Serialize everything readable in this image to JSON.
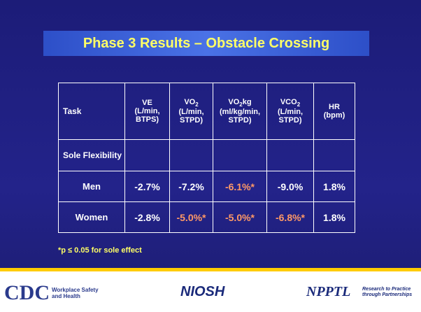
{
  "slide": {
    "title": "Phase 3 Results – Obstacle Crossing",
    "table": {
      "headers": [
        {
          "main": "Task"
        },
        {
          "main": "VE",
          "unit": "(L/min, BTPS)"
        },
        {
          "main": "VO",
          "sub": "2",
          "unit": "(L/min, STPD)"
        },
        {
          "main": "VO",
          "sub": "2",
          "after": "kg",
          "unit": "(ml/kg/min, STPD)"
        },
        {
          "main": "VCO",
          "sub": "2",
          "unit": "(L/min, STPD)"
        },
        {
          "main": "HR",
          "unit": "(bpm)"
        }
      ],
      "section": "Sole Flexibility",
      "rows": [
        {
          "label": "Men",
          "cells": [
            {
              "text": "-2.7%",
              "color": "#ffffff"
            },
            {
              "text": "-7.2%",
              "color": "#ffffff"
            },
            {
              "text": "-6.1%*",
              "color": "#ff9966"
            },
            {
              "text": "-9.0%",
              "color": "#ffffff"
            },
            {
              "text": "1.8%",
              "color": "#ffffff"
            }
          ]
        },
        {
          "label": "Women",
          "cells": [
            {
              "text": "-2.8%",
              "color": "#ffffff"
            },
            {
              "text": "-5.0%*",
              "color": "#ff9966"
            },
            {
              "text": "-5.0%*",
              "color": "#ff9966"
            },
            {
              "text": "-6.8%*",
              "color": "#ff9966"
            },
            {
              "text": "1.8%",
              "color": "#ffffff"
            }
          ]
        }
      ]
    },
    "footnote": "*p ≤ 0.05 for sole effect",
    "footer": {
      "cdc": "CDC",
      "cdc_tag": "Workplace Safety and Health",
      "niosh": "NIOSH",
      "npptl": "NPPTL",
      "npptl_tag": "Research to Practice through Partnerships"
    }
  }
}
